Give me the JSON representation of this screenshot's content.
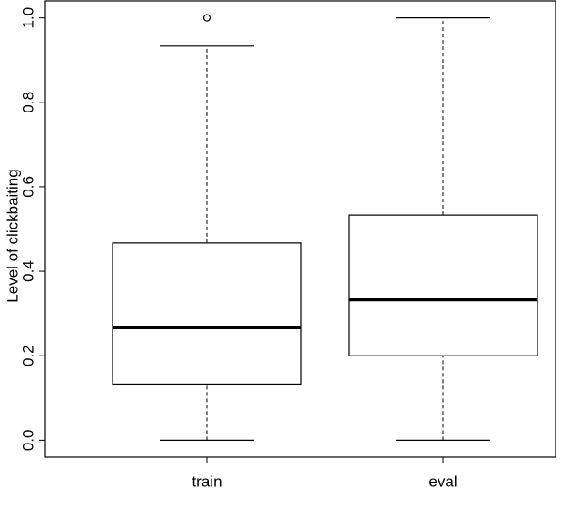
{
  "chart_data": {
    "type": "boxplot",
    "ylabel": "Level of clickbaiting",
    "categories": [
      "train",
      "eval"
    ],
    "boxes": [
      {
        "min": 0,
        "q1": 0.133,
        "median": 0.267,
        "q3": 0.467,
        "max": 0.933,
        "outliers": [
          1.0
        ]
      },
      {
        "min": 0,
        "q1": 0.2,
        "median": 0.333,
        "q3": 0.533,
        "max": 1.0,
        "outliers": []
      }
    ],
    "ylim": [
      -0.04,
      1.04
    ],
    "yticks": [
      {
        "value": 0,
        "label": "0.0"
      },
      {
        "value": 0.2,
        "label": "0.2"
      },
      {
        "value": 0.4,
        "label": "0.4"
      },
      {
        "value": 0.6,
        "label": "0.6"
      },
      {
        "value": 0.8,
        "label": "0.8"
      },
      {
        "value": 1,
        "label": "1.0"
      }
    ],
    "color": "#000000"
  }
}
